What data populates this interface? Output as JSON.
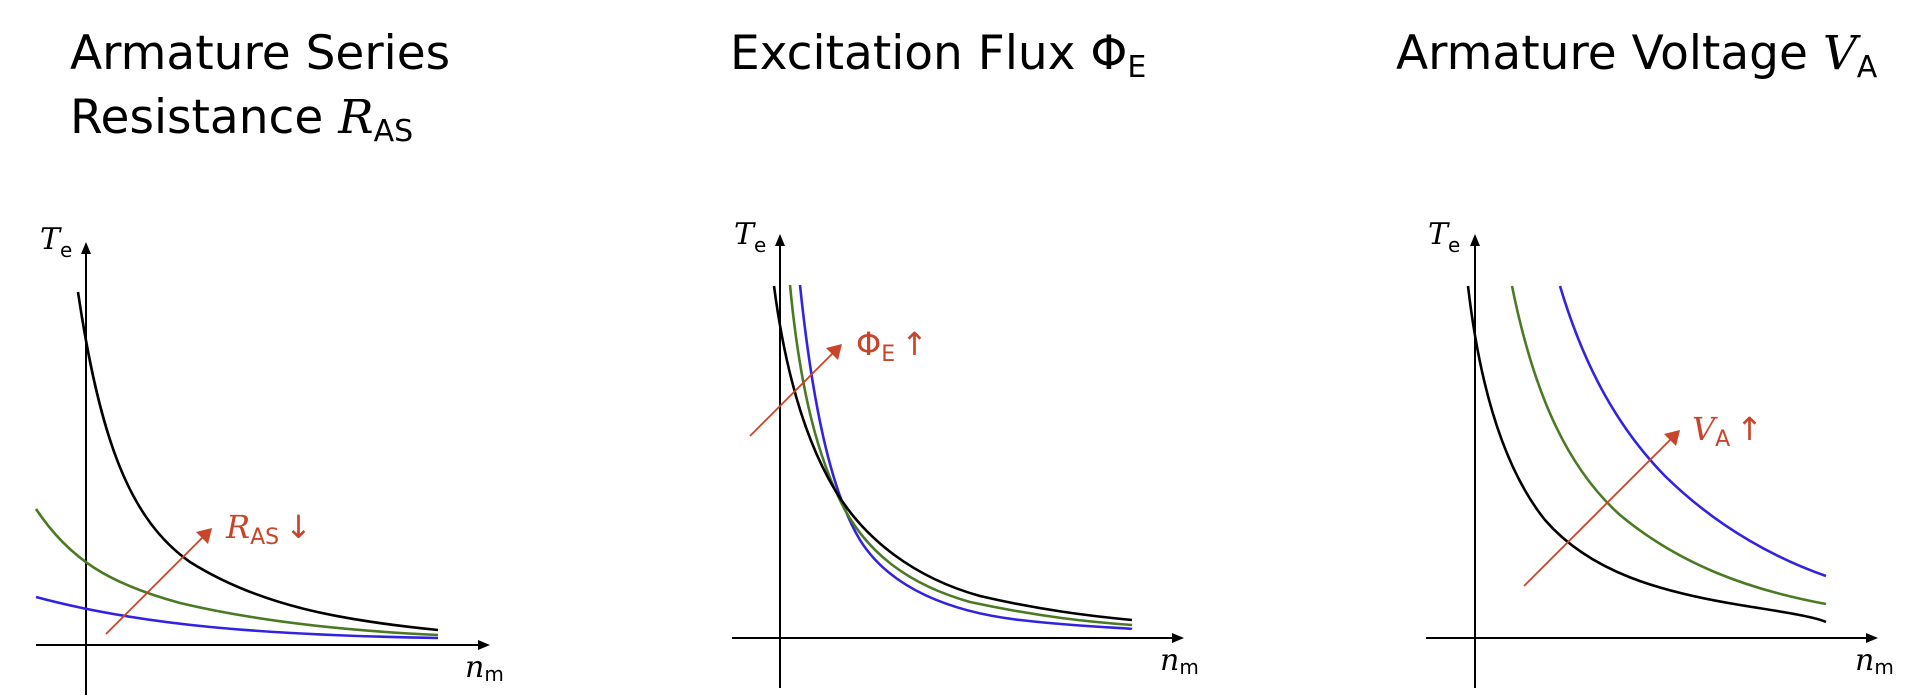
{
  "colors": {
    "black": "#000000",
    "green": "#4a7a23",
    "blue": "#3223e0",
    "accent": "#c8442a"
  },
  "panels": [
    {
      "title_prefix": "Armature Series Resistance ",
      "title_var": "R",
      "title_sub": "AS",
      "y_axis_var": "T",
      "y_axis_sub": "e",
      "x_axis_var": "n",
      "x_axis_sub": "m",
      "annotation_var": "R",
      "annotation_sub": "AS",
      "annotation_arrow": "↓"
    },
    {
      "title_prefix": "Excitation Flux ",
      "title_var": "Φ",
      "title_sub": "E",
      "y_axis_var": "T",
      "y_axis_sub": "e",
      "x_axis_var": "n",
      "x_axis_sub": "m",
      "annotation_var": "Φ",
      "annotation_sub": "E",
      "annotation_arrow": "↑"
    },
    {
      "title_prefix": "Armature Voltage ",
      "title_var": "V",
      "title_sub": "A",
      "y_axis_var": "T",
      "y_axis_sub": "e",
      "x_axis_var": "n",
      "x_axis_sub": "m",
      "annotation_var": "V",
      "annotation_sub": "A",
      "annotation_arrow": "↑"
    }
  ]
}
